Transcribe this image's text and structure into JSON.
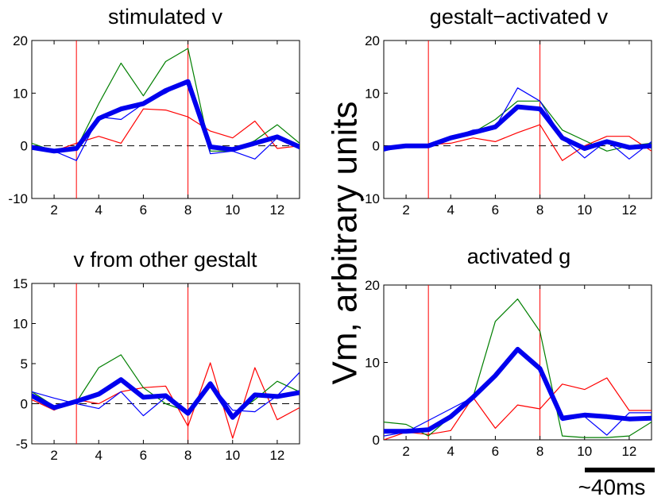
{
  "figure": {
    "ylabel": "Vm, arbitrary units",
    "scale_bar_label": "~40ms",
    "colors": {
      "thick": "#0000ee",
      "red": "#ff0000",
      "green": "#007f00",
      "blue": "#0000ff",
      "marker": "#ff0000",
      "zero_line": "#000000"
    }
  },
  "chart_data": [
    {
      "type": "line",
      "title": "stimulated v",
      "x": [
        1,
        2,
        3,
        4,
        5,
        6,
        7,
        8,
        9,
        10,
        11,
        12,
        13
      ],
      "xlim": [
        1,
        13
      ],
      "ylim": [
        -10,
        20
      ],
      "xticks": [
        2,
        4,
        6,
        8,
        10,
        12
      ],
      "yticks": [
        -10,
        0,
        10,
        20
      ],
      "vlines": [
        3,
        8
      ],
      "zero_line": true,
      "series": [
        {
          "color": "red",
          "values": [
            0,
            -1,
            0.5,
            1.8,
            0.5,
            7,
            6.8,
            5.5,
            2.8,
            1.5,
            4.7,
            -0.5,
            0
          ]
        },
        {
          "color": "green",
          "values": [
            0.5,
            -1,
            -0.5,
            8,
            15.7,
            9.5,
            16,
            18.5,
            -1,
            -1,
            1,
            4,
            0.5
          ]
        },
        {
          "color": "blue",
          "values": [
            -0.5,
            -1,
            -2.8,
            5.5,
            5,
            8,
            10,
            12.5,
            -1.5,
            -1,
            -2.5,
            1.5,
            -0.5
          ]
        },
        {
          "color": "thick",
          "values": [
            -0.3,
            -1,
            -0.5,
            5.2,
            7,
            8,
            10.5,
            12.2,
            -0.2,
            -0.7,
            0.5,
            1.7,
            -0.2
          ]
        }
      ]
    },
    {
      "type": "line",
      "title": "gestalt−activated v",
      "x": [
        1,
        2,
        3,
        4,
        5,
        6,
        7,
        8,
        9,
        10,
        11,
        12,
        13
      ],
      "xlim": [
        1,
        13
      ],
      "ylim": [
        -10,
        20
      ],
      "xticks": [
        2,
        4,
        6,
        8,
        10,
        12
      ],
      "yticks": [
        -10,
        0,
        10,
        20
      ],
      "vlines": [
        3,
        8
      ],
      "zero_line": true,
      "series": [
        {
          "color": "red",
          "values": [
            -0.5,
            0,
            0.2,
            0.5,
            1.5,
            0.8,
            2.5,
            4,
            -2.8,
            0,
            1.8,
            1.8,
            -1
          ]
        },
        {
          "color": "green",
          "values": [
            -1,
            0.2,
            0.2,
            1.2,
            2.5,
            5,
            8.5,
            8.5,
            3,
            1,
            -1,
            0,
            0.5
          ]
        },
        {
          "color": "blue",
          "values": [
            -1,
            0,
            0,
            1.5,
            3,
            3.5,
            11,
            8.5,
            1.5,
            -2.3,
            1,
            -2.5,
            0.8
          ]
        },
        {
          "color": "thick",
          "values": [
            -0.5,
            0,
            0,
            1.5,
            2.5,
            3.6,
            7.4,
            7,
            1.5,
            -0.5,
            0.8,
            -0.3,
            0
          ]
        }
      ]
    },
    {
      "type": "line",
      "title": "v from other gestalt",
      "x": [
        1,
        2,
        3,
        4,
        5,
        6,
        7,
        8,
        9,
        10,
        11,
        12,
        13
      ],
      "xlim": [
        1,
        13
      ],
      "ylim": [
        -5,
        15
      ],
      "xticks": [
        2,
        4,
        6,
        8,
        10,
        12
      ],
      "yticks": [
        -5,
        0,
        5,
        10,
        15
      ],
      "vlines": [
        3,
        8
      ],
      "zero_line": true,
      "series": [
        {
          "color": "red",
          "values": [
            0.5,
            -0.8,
            0.5,
            0,
            1.5,
            2,
            2.2,
            -2.8,
            5.1,
            -4.3,
            4.5,
            -2,
            -0.5
          ]
        },
        {
          "color": "green",
          "values": [
            1.5,
            -0.3,
            0.2,
            4.5,
            6.1,
            2,
            0,
            -1,
            2.5,
            -1.5,
            0.5,
            2.8,
            1.5
          ]
        },
        {
          "color": "blue",
          "values": [
            1.5,
            0.7,
            0,
            -0.6,
            1.5,
            -1.5,
            0.8,
            -1.2,
            2.5,
            -0.8,
            -1,
            1,
            3.9
          ]
        },
        {
          "color": "thick",
          "values": [
            1,
            -0.5,
            0.3,
            1.2,
            3,
            0.8,
            1,
            -1.2,
            2.5,
            -1.7,
            1.1,
            0.9,
            1.4
          ]
        }
      ]
    },
    {
      "type": "line",
      "title": "activated g",
      "x": [
        1,
        2,
        3,
        4,
        5,
        6,
        7,
        8,
        9,
        10,
        11,
        12,
        13
      ],
      "xlim": [
        1,
        13
      ],
      "ylim": [
        0,
        20
      ],
      "xticks": [
        2,
        4,
        6,
        8,
        10,
        12
      ],
      "yticks": [
        0,
        10,
        20
      ],
      "vlines": [
        3,
        8
      ],
      "zero_line": false,
      "series": [
        {
          "color": "red",
          "values": [
            0,
            1,
            0.7,
            1.2,
            5.5,
            1.5,
            4.5,
            4,
            7.2,
            6.5,
            8,
            3.8,
            3.8
          ]
        },
        {
          "color": "green",
          "values": [
            2.3,
            2,
            0.5,
            3,
            5.5,
            15.3,
            18.2,
            14,
            0.5,
            0.3,
            0.3,
            0.5,
            2.3
          ]
        },
        {
          "color": "blue",
          "values": [
            0.5,
            1,
            2.5,
            4,
            5.5,
            8.5,
            11.7,
            9.2,
            2.5,
            3,
            0.6,
            3.5,
            3.5
          ]
        },
        {
          "color": "thick",
          "values": [
            1.1,
            1.1,
            1.3,
            3,
            5.5,
            8.3,
            11.7,
            9.2,
            2.8,
            3.2,
            3,
            2.7,
            2.8
          ]
        }
      ]
    }
  ]
}
